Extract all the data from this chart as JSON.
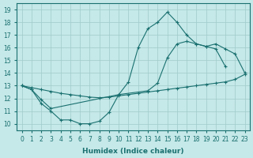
{
  "xlabel": "Humidex (Indice chaleur)",
  "xlim": [
    -0.5,
    23.5
  ],
  "ylim": [
    9.5,
    19.5
  ],
  "xtick_labels": [
    "0",
    "1",
    "2",
    "3",
    "4",
    "5",
    "6",
    "7",
    "8",
    "9",
    "10",
    "11",
    "12",
    "13",
    "14",
    "15",
    "16",
    "17",
    "18",
    "19",
    "20",
    "21",
    "22",
    "23"
  ],
  "ytick_labels": [
    "10",
    "11",
    "12",
    "13",
    "14",
    "15",
    "16",
    "17",
    "18",
    "19"
  ],
  "bg_color": "#c5e8e8",
  "grid_color": "#a0cbcb",
  "line_color": "#1a7070",
  "line1_x": [
    0,
    1,
    2,
    3,
    4,
    5,
    6,
    7,
    8,
    9,
    10,
    11,
    12,
    13,
    14,
    15,
    16,
    17,
    18,
    19,
    20,
    21
  ],
  "line1_y": [
    13.0,
    12.7,
    11.6,
    11.0,
    10.3,
    10.3,
    10.0,
    10.0,
    10.2,
    10.9,
    12.3,
    13.3,
    16.0,
    17.5,
    18.0,
    18.8,
    18.0,
    17.0,
    16.3,
    16.1,
    15.9,
    14.5
  ],
  "line2_x": [
    0,
    1,
    2,
    3,
    10,
    13,
    14,
    15,
    16,
    17,
    18,
    19,
    20,
    21,
    22,
    23
  ],
  "line2_y": [
    13.0,
    12.7,
    11.9,
    11.2,
    12.3,
    12.6,
    13.2,
    15.2,
    16.3,
    16.5,
    16.3,
    16.1,
    16.3,
    15.9,
    15.5,
    14.0
  ],
  "line3_x": [
    0,
    1,
    2,
    3,
    4,
    5,
    6,
    7,
    8,
    9,
    10,
    11,
    12,
    13,
    14,
    15,
    16,
    17,
    18,
    19,
    20,
    21,
    22,
    23
  ],
  "line3_y": [
    13.0,
    12.85,
    12.7,
    12.55,
    12.4,
    12.3,
    12.2,
    12.1,
    12.05,
    12.1,
    12.2,
    12.3,
    12.4,
    12.5,
    12.6,
    12.7,
    12.8,
    12.9,
    13.0,
    13.1,
    13.2,
    13.3,
    13.5,
    13.9
  ]
}
